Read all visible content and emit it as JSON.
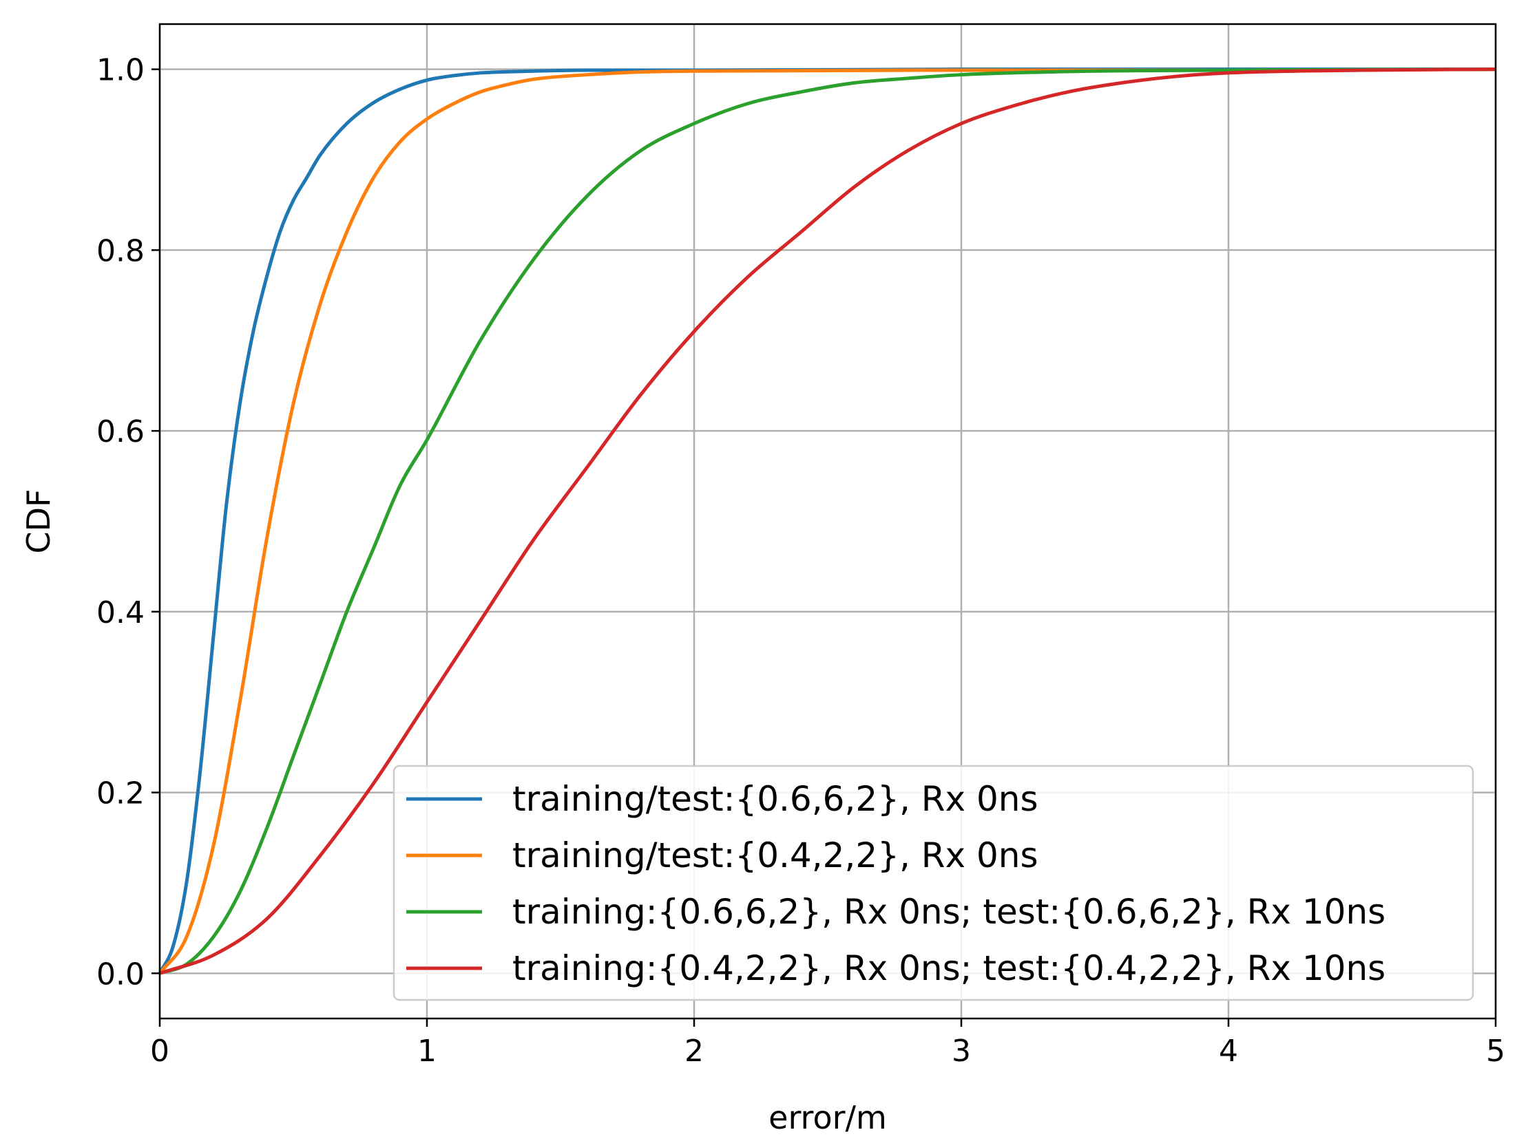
{
  "chart_data": {
    "type": "line",
    "title": "",
    "xlabel": "error/m",
    "ylabel": "CDF",
    "xlim": [
      0,
      5
    ],
    "ylim": [
      -0.05,
      1.05
    ],
    "xticks": [
      0,
      1,
      2,
      3,
      4,
      5
    ],
    "xtick_labels": [
      "0",
      "1",
      "2",
      "3",
      "4",
      "5"
    ],
    "yticks": [
      0.0,
      0.2,
      0.4,
      0.6,
      0.8,
      1.0
    ],
    "ytick_labels": [
      "0.0",
      "0.2",
      "0.4",
      "0.6",
      "0.8",
      "1.0"
    ],
    "grid": true,
    "legend_position": "lower-right",
    "series": [
      {
        "name": "training/test:{0.6,6,2}, Rx 0ns",
        "color": "#1f77b4",
        "x": [
          0,
          0.05,
          0.1,
          0.15,
          0.2,
          0.25,
          0.3,
          0.35,
          0.4,
          0.45,
          0.5,
          0.55,
          0.6,
          0.7,
          0.8,
          0.9,
          1.0,
          1.1,
          1.2,
          1.4,
          1.6,
          2.0,
          3.0,
          4.0,
          5.0
        ],
        "y": [
          0,
          0.03,
          0.1,
          0.22,
          0.37,
          0.52,
          0.63,
          0.71,
          0.77,
          0.82,
          0.855,
          0.88,
          0.905,
          0.94,
          0.963,
          0.978,
          0.988,
          0.993,
          0.996,
          0.998,
          0.999,
          0.999,
          1.0,
          1.0,
          1.0
        ]
      },
      {
        "name": "training/test:{0.4,2,2}, Rx 0ns",
        "color": "#ff7f0e",
        "x": [
          0,
          0.1,
          0.2,
          0.3,
          0.4,
          0.5,
          0.6,
          0.7,
          0.8,
          0.9,
          1.0,
          1.1,
          1.2,
          1.3,
          1.4,
          1.6,
          1.8,
          2.0,
          3.0,
          4.0,
          5.0
        ],
        "y": [
          0,
          0.04,
          0.14,
          0.3,
          0.48,
          0.63,
          0.74,
          0.82,
          0.88,
          0.92,
          0.945,
          0.962,
          0.975,
          0.983,
          0.989,
          0.994,
          0.997,
          0.998,
          0.999,
          0.999,
          1.0
        ]
      },
      {
        "name": "training:{0.6,6,2}, Rx 0ns; test:{0.6,6,2}, Rx 10ns",
        "color": "#2ca02c",
        "x": [
          0,
          0.1,
          0.2,
          0.3,
          0.4,
          0.5,
          0.6,
          0.7,
          0.8,
          0.9,
          1.0,
          1.2,
          1.4,
          1.6,
          1.8,
          2.0,
          2.2,
          2.4,
          2.6,
          2.8,
          3.0,
          3.5,
          4.0,
          5.0
        ],
        "y": [
          0,
          0.01,
          0.04,
          0.09,
          0.16,
          0.24,
          0.32,
          0.4,
          0.47,
          0.54,
          0.59,
          0.7,
          0.79,
          0.86,
          0.91,
          0.94,
          0.962,
          0.975,
          0.985,
          0.99,
          0.994,
          0.998,
          0.999,
          1.0
        ]
      },
      {
        "name": "training:{0.4,2,2}, Rx 0ns; test:{0.4,2,2}, Rx 10ns",
        "color": "#d62728",
        "x": [
          0,
          0.2,
          0.4,
          0.6,
          0.8,
          1.0,
          1.2,
          1.4,
          1.6,
          1.8,
          2.0,
          2.2,
          2.4,
          2.6,
          2.8,
          3.0,
          3.2,
          3.4,
          3.6,
          3.8,
          4.0,
          4.5,
          5.0
        ],
        "y": [
          0,
          0.02,
          0.06,
          0.13,
          0.21,
          0.3,
          0.39,
          0.48,
          0.56,
          0.64,
          0.71,
          0.77,
          0.82,
          0.87,
          0.91,
          0.94,
          0.96,
          0.975,
          0.985,
          0.992,
          0.996,
          0.999,
          1.0
        ]
      }
    ]
  }
}
